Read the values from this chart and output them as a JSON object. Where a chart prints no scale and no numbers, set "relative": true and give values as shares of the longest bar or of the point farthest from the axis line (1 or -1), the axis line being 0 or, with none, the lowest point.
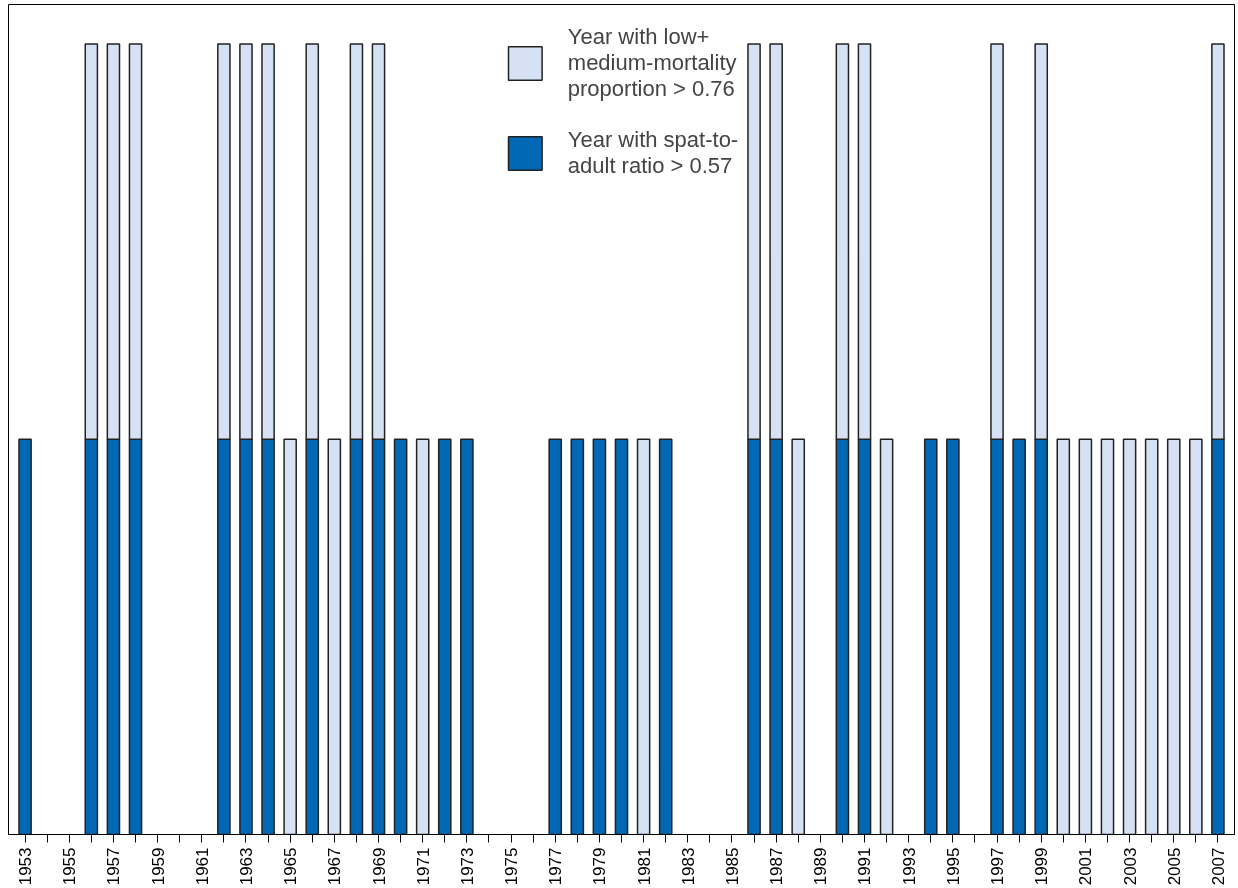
{
  "chart_data": {
    "type": "bar",
    "relative": true,
    "stacked": true,
    "categories": [
      "1953",
      null,
      "1955",
      null,
      "1957",
      null,
      "1959",
      null,
      "1961",
      null,
      "1963",
      null,
      "1965",
      null,
      "1967",
      null,
      "1969",
      null,
      "1971",
      null,
      "1973",
      null,
      "1975",
      null,
      "1977",
      null,
      "1979",
      null,
      "1981",
      null,
      "1983",
      null,
      "1985",
      null,
      "1987",
      null,
      "1989",
      null,
      "1991",
      null,
      "1993",
      null,
      "1995",
      null,
      "1997",
      null,
      "1999",
      null,
      "2001",
      null,
      "2003",
      null,
      "2005",
      null,
      "2007"
    ],
    "series": [
      {
        "name": "Year with spat-to-\nadult ratio > 0.57",
        "color": "#0068b4",
        "values": [
          0.5,
          null,
          null,
          0.5,
          0.5,
          0.5,
          null,
          null,
          null,
          0.5,
          0.5,
          0.5,
          null,
          0.5,
          null,
          0.5,
          0.5,
          0.5,
          null,
          0.5,
          0.5,
          null,
          null,
          null,
          0.5,
          0.5,
          0.5,
          0.5,
          null,
          0.5,
          null,
          null,
          null,
          0.5,
          0.5,
          null,
          null,
          0.5,
          0.5,
          null,
          null,
          0.5,
          0.5,
          null,
          0.5,
          0.5,
          0.5,
          null,
          null,
          null,
          null,
          null,
          null,
          null,
          0.5
        ]
      },
      {
        "name": "Year with low+\nmedium-mortality\nproportion > 0.76",
        "color": "#d6e2f3",
        "values": [
          null,
          null,
          null,
          0.5,
          0.5,
          0.5,
          null,
          null,
          null,
          0.5,
          0.5,
          0.5,
          0.5,
          0.5,
          0.5,
          0.5,
          0.5,
          null,
          0.5,
          null,
          null,
          null,
          null,
          null,
          null,
          null,
          null,
          null,
          0.5,
          null,
          null,
          null,
          null,
          0.5,
          0.5,
          0.5,
          null,
          0.5,
          0.5,
          0.5,
          null,
          null,
          null,
          null,
          0.5,
          null,
          0.5,
          0.5,
          0.5,
          0.5,
          0.5,
          0.5,
          0.5,
          0.5,
          0.5
        ]
      }
    ],
    "legend": "top",
    "grid": false
  }
}
